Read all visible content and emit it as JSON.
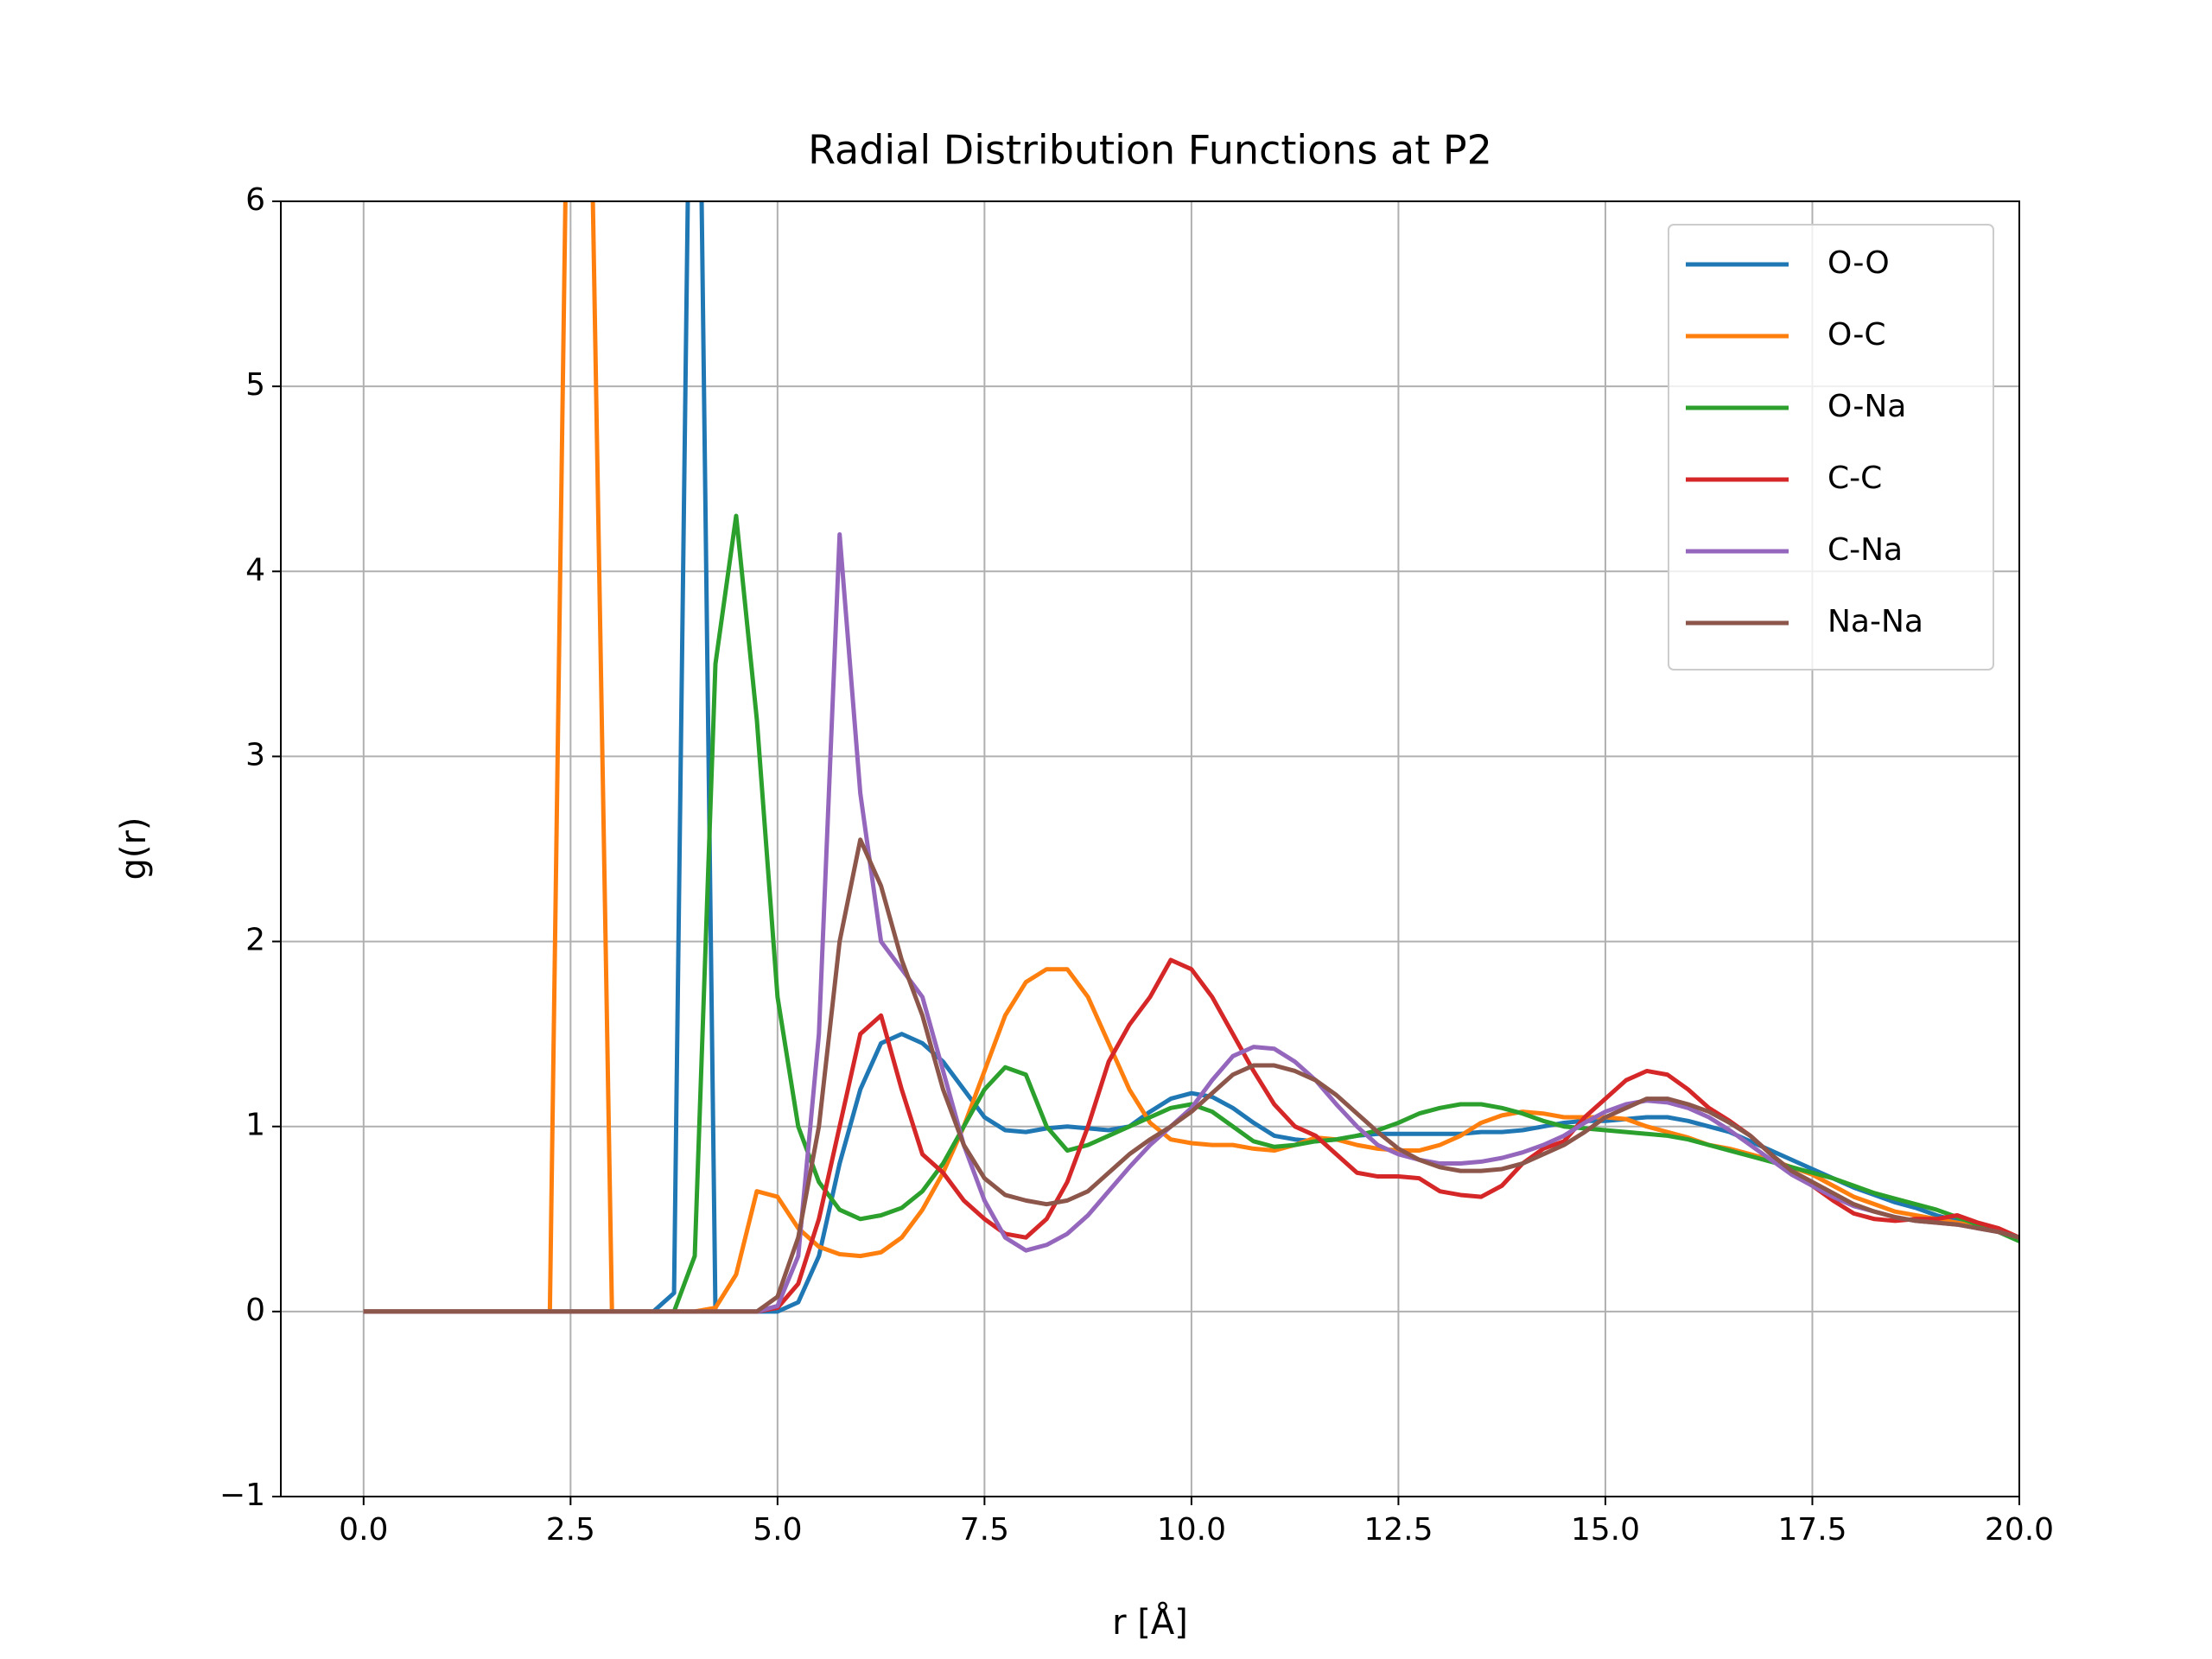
{
  "chart_data": {
    "type": "line",
    "title": "Radial Distribution Functions at P2",
    "xlabel": "r [Å]",
    "ylabel": "g(r)",
    "x": [
      0,
      0.25,
      0.5,
      0.75,
      1,
      1.25,
      1.5,
      1.75,
      2,
      2.25,
      2.5,
      2.75,
      3,
      3.25,
      3.5,
      3.75,
      4,
      4.25,
      4.5,
      4.75,
      5,
      5.25,
      5.5,
      5.75,
      6,
      6.25,
      6.5,
      6.75,
      7,
      7.25,
      7.5,
      7.75,
      8,
      8.25,
      8.5,
      8.75,
      9,
      9.25,
      9.5,
      9.75,
      10,
      10.25,
      10.5,
      10.75,
      11,
      11.25,
      11.5,
      11.75,
      12,
      12.25,
      12.5,
      12.75,
      13,
      13.25,
      13.5,
      13.75,
      14,
      14.25,
      14.5,
      14.75,
      15,
      15.25,
      15.5,
      15.75,
      16,
      16.25,
      16.5,
      16.75,
      17,
      17.25,
      17.5,
      17.75,
      18,
      18.25,
      18.5,
      18.75,
      19,
      19.25,
      19.5,
      19.75,
      20
    ],
    "series": [
      {
        "name": "O-O",
        "color": "#1f77b4",
        "values": [
          0,
          0,
          0,
          0,
          0,
          0,
          0,
          0,
          0,
          0,
          0,
          0,
          0,
          0,
          0,
          0.1,
          9,
          0,
          0,
          0,
          0,
          0.05,
          0.3,
          0.8,
          1.2,
          1.45,
          1.5,
          1.45,
          1.35,
          1.2,
          1.05,
          0.98,
          0.97,
          0.99,
          1.0,
          0.99,
          0.98,
          1.0,
          1.08,
          1.15,
          1.18,
          1.16,
          1.1,
          1.02,
          0.95,
          0.93,
          0.92,
          0.93,
          0.95,
          0.96,
          0.96,
          0.96,
          0.96,
          0.96,
          0.97,
          0.97,
          0.98,
          1.0,
          1.02,
          1.03,
          1.03,
          1.04,
          1.05,
          1.05,
          1.03,
          1.0,
          0.97,
          0.92,
          0.87,
          0.82,
          0.77,
          0.72,
          0.67,
          0.63,
          0.59,
          0.56,
          0.52,
          0.49,
          0.47,
          0.44,
          0.4
        ]
      },
      {
        "name": "O-C",
        "color": "#ff7f0e",
        "values": [
          0,
          0,
          0,
          0,
          0,
          0,
          0,
          0,
          0,
          0,
          8,
          6.5,
          0,
          0,
          0,
          0,
          0,
          0.02,
          0.2,
          0.65,
          0.62,
          0.45,
          0.35,
          0.31,
          0.3,
          0.32,
          0.4,
          0.55,
          0.75,
          1.0,
          1.3,
          1.6,
          1.78,
          1.85,
          1.85,
          1.7,
          1.45,
          1.2,
          1.02,
          0.93,
          0.91,
          0.9,
          0.9,
          0.88,
          0.87,
          0.9,
          0.94,
          0.93,
          0.9,
          0.88,
          0.87,
          0.87,
          0.9,
          0.95,
          1.02,
          1.06,
          1.08,
          1.07,
          1.05,
          1.05,
          1.05,
          1.04,
          1.0,
          0.97,
          0.94,
          0.9,
          0.88,
          0.85,
          0.82,
          0.78,
          0.74,
          0.68,
          0.62,
          0.58,
          0.54,
          0.52,
          0.5,
          0.48,
          0.46,
          0.43,
          0.4
        ]
      },
      {
        "name": "O-Na",
        "color": "#2ca02c",
        "values": [
          0,
          0,
          0,
          0,
          0,
          0,
          0,
          0,
          0,
          0,
          0,
          0,
          0,
          0,
          0,
          0,
          0.3,
          3.5,
          4.3,
          3.2,
          1.7,
          1.0,
          0.7,
          0.55,
          0.5,
          0.52,
          0.56,
          0.65,
          0.8,
          1.0,
          1.2,
          1.32,
          1.28,
          1.0,
          0.87,
          0.9,
          0.95,
          1.0,
          1.05,
          1.1,
          1.12,
          1.08,
          1.0,
          0.92,
          0.89,
          0.9,
          0.92,
          0.93,
          0.95,
          0.98,
          1.02,
          1.07,
          1.1,
          1.12,
          1.12,
          1.1,
          1.07,
          1.03,
          1.0,
          0.99,
          0.98,
          0.97,
          0.96,
          0.95,
          0.93,
          0.9,
          0.87,
          0.84,
          0.81,
          0.78,
          0.75,
          0.72,
          0.68,
          0.64,
          0.61,
          0.58,
          0.55,
          0.51,
          0.47,
          0.43,
          0.38
        ]
      },
      {
        "name": "C-C",
        "color": "#d62728",
        "values": [
          0,
          0,
          0,
          0,
          0,
          0,
          0,
          0,
          0,
          0,
          0,
          0,
          0,
          0,
          0,
          0,
          0,
          0,
          0,
          0,
          0.02,
          0.15,
          0.5,
          1.0,
          1.5,
          1.6,
          1.2,
          0.85,
          0.75,
          0.6,
          0.5,
          0.42,
          0.4,
          0.5,
          0.7,
          1.0,
          1.35,
          1.55,
          1.7,
          1.9,
          1.85,
          1.7,
          1.5,
          1.3,
          1.12,
          1.0,
          0.95,
          0.85,
          0.75,
          0.73,
          0.73,
          0.72,
          0.65,
          0.63,
          0.62,
          0.68,
          0.8,
          0.88,
          0.92,
          1.05,
          1.15,
          1.25,
          1.3,
          1.28,
          1.2,
          1.1,
          1.03,
          0.95,
          0.85,
          0.75,
          0.68,
          0.6,
          0.53,
          0.5,
          0.49,
          0.5,
          0.5,
          0.52,
          0.48,
          0.45,
          0.4
        ]
      },
      {
        "name": "C-Na",
        "color": "#9467bd",
        "values": [
          0,
          0,
          0,
          0,
          0,
          0,
          0,
          0,
          0,
          0,
          0,
          0,
          0,
          0,
          0,
          0,
          0,
          0,
          0,
          0,
          0.03,
          0.3,
          1.5,
          4.2,
          2.8,
          2.0,
          1.85,
          1.7,
          1.3,
          0.9,
          0.6,
          0.4,
          0.33,
          0.36,
          0.42,
          0.52,
          0.65,
          0.78,
          0.9,
          1.0,
          1.1,
          1.25,
          1.38,
          1.43,
          1.42,
          1.35,
          1.25,
          1.12,
          1.0,
          0.9,
          0.85,
          0.82,
          0.8,
          0.8,
          0.81,
          0.83,
          0.86,
          0.9,
          0.95,
          1.02,
          1.08,
          1.12,
          1.14,
          1.13,
          1.1,
          1.05,
          0.98,
          0.9,
          0.82,
          0.74,
          0.68,
          0.62,
          0.57,
          0.54,
          0.51,
          0.49,
          0.48,
          0.47,
          0.45,
          0.43,
          0.4
        ]
      },
      {
        "name": "Na-Na",
        "color": "#8c564b",
        "values": [
          0,
          0,
          0,
          0,
          0,
          0,
          0,
          0,
          0,
          0,
          0,
          0,
          0,
          0,
          0,
          0,
          0,
          0,
          0,
          0,
          0.08,
          0.4,
          1.0,
          2.0,
          2.55,
          2.3,
          1.9,
          1.6,
          1.2,
          0.9,
          0.72,
          0.63,
          0.6,
          0.58,
          0.6,
          0.65,
          0.75,
          0.85,
          0.93,
          1.0,
          1.08,
          1.18,
          1.28,
          1.33,
          1.33,
          1.3,
          1.25,
          1.17,
          1.07,
          0.97,
          0.88,
          0.82,
          0.78,
          0.76,
          0.76,
          0.77,
          0.8,
          0.85,
          0.9,
          0.97,
          1.05,
          1.1,
          1.15,
          1.15,
          1.12,
          1.08,
          1.02,
          0.95,
          0.85,
          0.76,
          0.7,
          0.64,
          0.58,
          0.54,
          0.51,
          0.49,
          0.48,
          0.47,
          0.45,
          0.43,
          0.4
        ]
      }
    ],
    "xlim": [
      -1,
      20
    ],
    "ylim": [
      -1,
      6
    ],
    "xticks": [
      {
        "value": 0,
        "label": "0.0"
      },
      2.5,
      {
        "value": 5,
        "label": "5.0"
      },
      7.5,
      {
        "value": 10,
        "label": "10.0"
      },
      12.5,
      {
        "value": 15,
        "label": "15.0"
      },
      17.5,
      {
        "value": 20,
        "label": "20.0"
      }
    ],
    "yticks": [
      {
        "value": -1,
        "label": "−1"
      },
      0,
      1,
      2,
      3,
      4,
      5,
      6
    ],
    "grid": true,
    "legend": "upper right"
  }
}
